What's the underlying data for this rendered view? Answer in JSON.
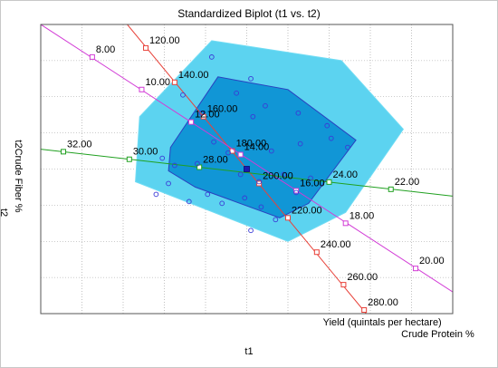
{
  "title": "Standardized Biplot (t1 vs. t2)",
  "x_axis_title": "t1",
  "y_axis_title": "t2",
  "chart_data": {
    "type": "scatter",
    "title": "Standardized Biplot (t1 vs. t2)",
    "xlabel": "t1",
    "ylabel": "t2",
    "xlim": [
      -5,
      5
    ],
    "ylim": [
      -4,
      4
    ],
    "grid": true,
    "colors": {
      "hull_outer": "#5cd3f0",
      "hull_inner": "#1196d6",
      "points": "#3a3ad6",
      "center": "#1a1ab0",
      "yield_axis": "#e8423a",
      "protein_axis": "#d23bd6",
      "fiber_axis": "#20a020"
    },
    "outer_hull": [
      {
        "x": -2.6,
        "y": 1.45
      },
      {
        "x": -0.85,
        "y": 3.55
      },
      {
        "x": 2.3,
        "y": 3.0
      },
      {
        "x": 3.8,
        "y": 1.1
      },
      {
        "x": 2.4,
        "y": -1.2
      },
      {
        "x": 1.0,
        "y": -2.0
      },
      {
        "x": -2.7,
        "y": -0.35
      }
    ],
    "inner_hull": [
      {
        "x": -1.85,
        "y": 0.6
      },
      {
        "x": -0.7,
        "y": 2.55
      },
      {
        "x": 1.0,
        "y": 2.2
      },
      {
        "x": 2.65,
        "y": 0.8
      },
      {
        "x": 1.5,
        "y": -0.95
      },
      {
        "x": 0.8,
        "y": -1.35
      },
      {
        "x": -1.25,
        "y": -0.5
      },
      {
        "x": -1.9,
        "y": -0.05
      }
    ],
    "points": [
      {
        "x": -0.85,
        "y": 3.1
      },
      {
        "x": -1.55,
        "y": 2.05
      },
      {
        "x": 0.1,
        "y": 2.5
      },
      {
        "x": -0.25,
        "y": 2.1
      },
      {
        "x": 0.45,
        "y": 1.75
      },
      {
        "x": -1.1,
        "y": 1.55
      },
      {
        "x": 0.15,
        "y": 1.45
      },
      {
        "x": 1.25,
        "y": 1.55
      },
      {
        "x": 2.05,
        "y": 0.85
      },
      {
        "x": -0.8,
        "y": 0.75
      },
      {
        "x": -0.45,
        "y": 0.45
      },
      {
        "x": 0.6,
        "y": 0.5
      },
      {
        "x": 1.3,
        "y": 0.7
      },
      {
        "x": -2.05,
        "y": 0.3
      },
      {
        "x": -1.75,
        "y": 0.1
      },
      {
        "x": -1.2,
        "y": 0.15
      },
      {
        "x": -0.15,
        "y": -0.15
      },
      {
        "x": 0.3,
        "y": -0.35
      },
      {
        "x": 0.9,
        "y": -0.15
      },
      {
        "x": -1.9,
        "y": -0.4
      },
      {
        "x": -0.95,
        "y": -0.7
      },
      {
        "x": -0.05,
        "y": -0.8
      },
      {
        "x": 0.35,
        "y": -1.05
      },
      {
        "x": 1.2,
        "y": -0.65
      },
      {
        "x": 2.45,
        "y": 0.6
      },
      {
        "x": -0.6,
        "y": -0.95
      },
      {
        "x": 0.7,
        "y": -1.4
      },
      {
        "x": -1.4,
        "y": -0.9
      },
      {
        "x": 1.55,
        "y": -0.25
      },
      {
        "x": -2.2,
        "y": -0.7
      },
      {
        "x": 0.1,
        "y": -1.7
      },
      {
        "x": 1.95,
        "y": 1.2
      }
    ],
    "center_point": {
      "x": 0.0,
      "y": 0.0
    },
    "variable_axes": [
      {
        "name": "Yield (quintals per hectare)",
        "color": "#e8423a",
        "marker": "square",
        "from": {
          "x": -2.9,
          "y": 4.0
        },
        "to": {
          "x": 2.9,
          "y": -4.0
        },
        "ticks": [
          {
            "label": "120.00",
            "x": -2.45,
            "y": 3.35
          },
          {
            "label": "140.00",
            "x": -1.75,
            "y": 2.4
          },
          {
            "label": "160.00",
            "x": -1.05,
            "y": 1.45
          },
          {
            "label": "180.00",
            "x": -0.35,
            "y": 0.5
          },
          {
            "label": "200.00",
            "x": 0.3,
            "y": -0.4
          },
          {
            "label": "220.00",
            "x": 1.0,
            "y": -1.35
          },
          {
            "label": "240.00",
            "x": 1.7,
            "y": -2.3
          },
          {
            "label": "260.00",
            "x": 2.35,
            "y": -3.2
          },
          {
            "label": "280.00",
            "x": 2.85,
            "y": -3.9
          }
        ]
      },
      {
        "name": "Crude Protein %",
        "color": "#d23bd6",
        "marker": "square",
        "from": {
          "x": -5.0,
          "y": 4.0
        },
        "to": {
          "x": 5.0,
          "y": -3.4
        },
        "ticks": [
          {
            "label": "8.00",
            "x": -3.75,
            "y": 3.1
          },
          {
            "label": "10.00",
            "x": -2.55,
            "y": 2.2
          },
          {
            "label": "12.00",
            "x": -1.35,
            "y": 1.3
          },
          {
            "label": "14.00",
            "x": -0.15,
            "y": 0.4
          },
          {
            "label": "16.00",
            "x": 1.2,
            "y": -0.6
          },
          {
            "label": "18.00",
            "x": 2.4,
            "y": -1.5
          },
          {
            "label": "20.00",
            "x": 4.1,
            "y": -2.75
          }
        ]
      },
      {
        "name": "Crude Fiber %",
        "color": "#20a020",
        "marker": "square",
        "from": {
          "x": -5.0,
          "y": 0.55
        },
        "to": {
          "x": 5.0,
          "y": -0.75
        },
        "ticks": [
          {
            "label": "32.00",
            "x": -4.45,
            "y": 0.48
          },
          {
            "label": "30.00",
            "x": -2.85,
            "y": 0.27
          },
          {
            "label": "28.00",
            "x": -1.15,
            "y": 0.05
          },
          {
            "label": "24.00",
            "x": 2.0,
            "y": -0.36
          },
          {
            "label": "22.00",
            "x": 3.5,
            "y": -0.56
          }
        ]
      }
    ],
    "axis_name_labels": [
      {
        "text": "Yield (quintals per hectare)",
        "x": 1.85,
        "y": -3.7
      },
      {
        "text": "Crude Protein %",
        "x": 3.75,
        "y": -4.0
      },
      {
        "text": "t2Crude Fiber %",
        "x": -5.35,
        "y": -0.2
      }
    ]
  }
}
